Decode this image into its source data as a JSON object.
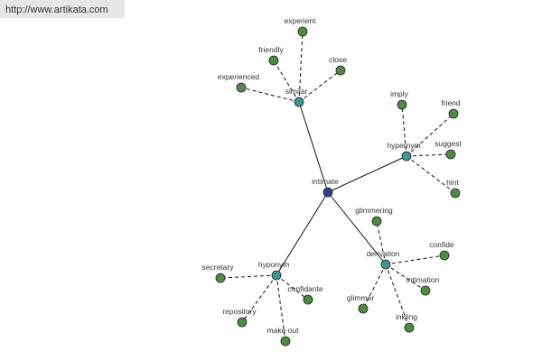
{
  "watermark": "http://www.artikata.com",
  "root": "intimate",
  "groups": [
    {
      "label": "similar",
      "children": [
        "experient",
        "friendly",
        "close",
        "experienced"
      ]
    },
    {
      "label": "hypernym",
      "children": [
        "imply",
        "friend",
        "suggest",
        "hint"
      ]
    },
    {
      "label": "derivation",
      "children": [
        "glimmering",
        "confide",
        "intimation",
        "glimmer",
        "inkling"
      ]
    },
    {
      "label": "hyponym",
      "children": [
        "secretary",
        "confidante",
        "repository",
        "make out"
      ]
    }
  ]
}
